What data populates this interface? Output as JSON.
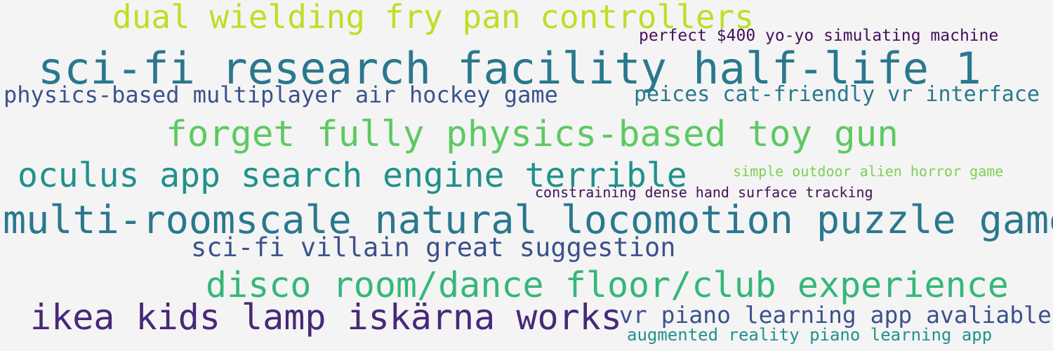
{
  "palette": {
    "background": "#f4f4f4",
    "lime": "#bddf26",
    "dark_purple": "#440f5a",
    "deep_teal": "#2a788e",
    "slate_blue": "#3b528b",
    "teal": "#21918c",
    "green": "#5ec962",
    "light_green": "#7ad151",
    "sea_green": "#35b779",
    "indigo": "#482878"
  },
  "phrases": [
    {
      "id": "p1",
      "text": "dual wielding fry pan controllers"
    },
    {
      "id": "p2",
      "text": "perfect $400 yo-yo simulating machine"
    },
    {
      "id": "p3",
      "text": "sci-fi research facility half-life 1"
    },
    {
      "id": "p4",
      "text": "physics-based multiplayer air hockey game"
    },
    {
      "id": "p5",
      "text": "peices cat-friendly vr interface"
    },
    {
      "id": "p6",
      "text": "forget fully physics-based toy gun"
    },
    {
      "id": "p7",
      "text": "oculus app search engine terrible"
    },
    {
      "id": "p8",
      "text": "simple outdoor alien horror game"
    },
    {
      "id": "p9",
      "text": "constraining dense hand surface tracking"
    },
    {
      "id": "p10",
      "text": "multi-roomscale natural locomotion puzzle game"
    },
    {
      "id": "p11",
      "text": "sci-fi villain great suggestion"
    },
    {
      "id": "p12",
      "text": "disco room/dance floor/club experience"
    },
    {
      "id": "p13",
      "text": "ikea kids lamp iskärna works"
    },
    {
      "id": "p14",
      "text": "vr piano learning app avaliable"
    },
    {
      "id": "p15",
      "text": "augmented reality piano learning app"
    }
  ]
}
